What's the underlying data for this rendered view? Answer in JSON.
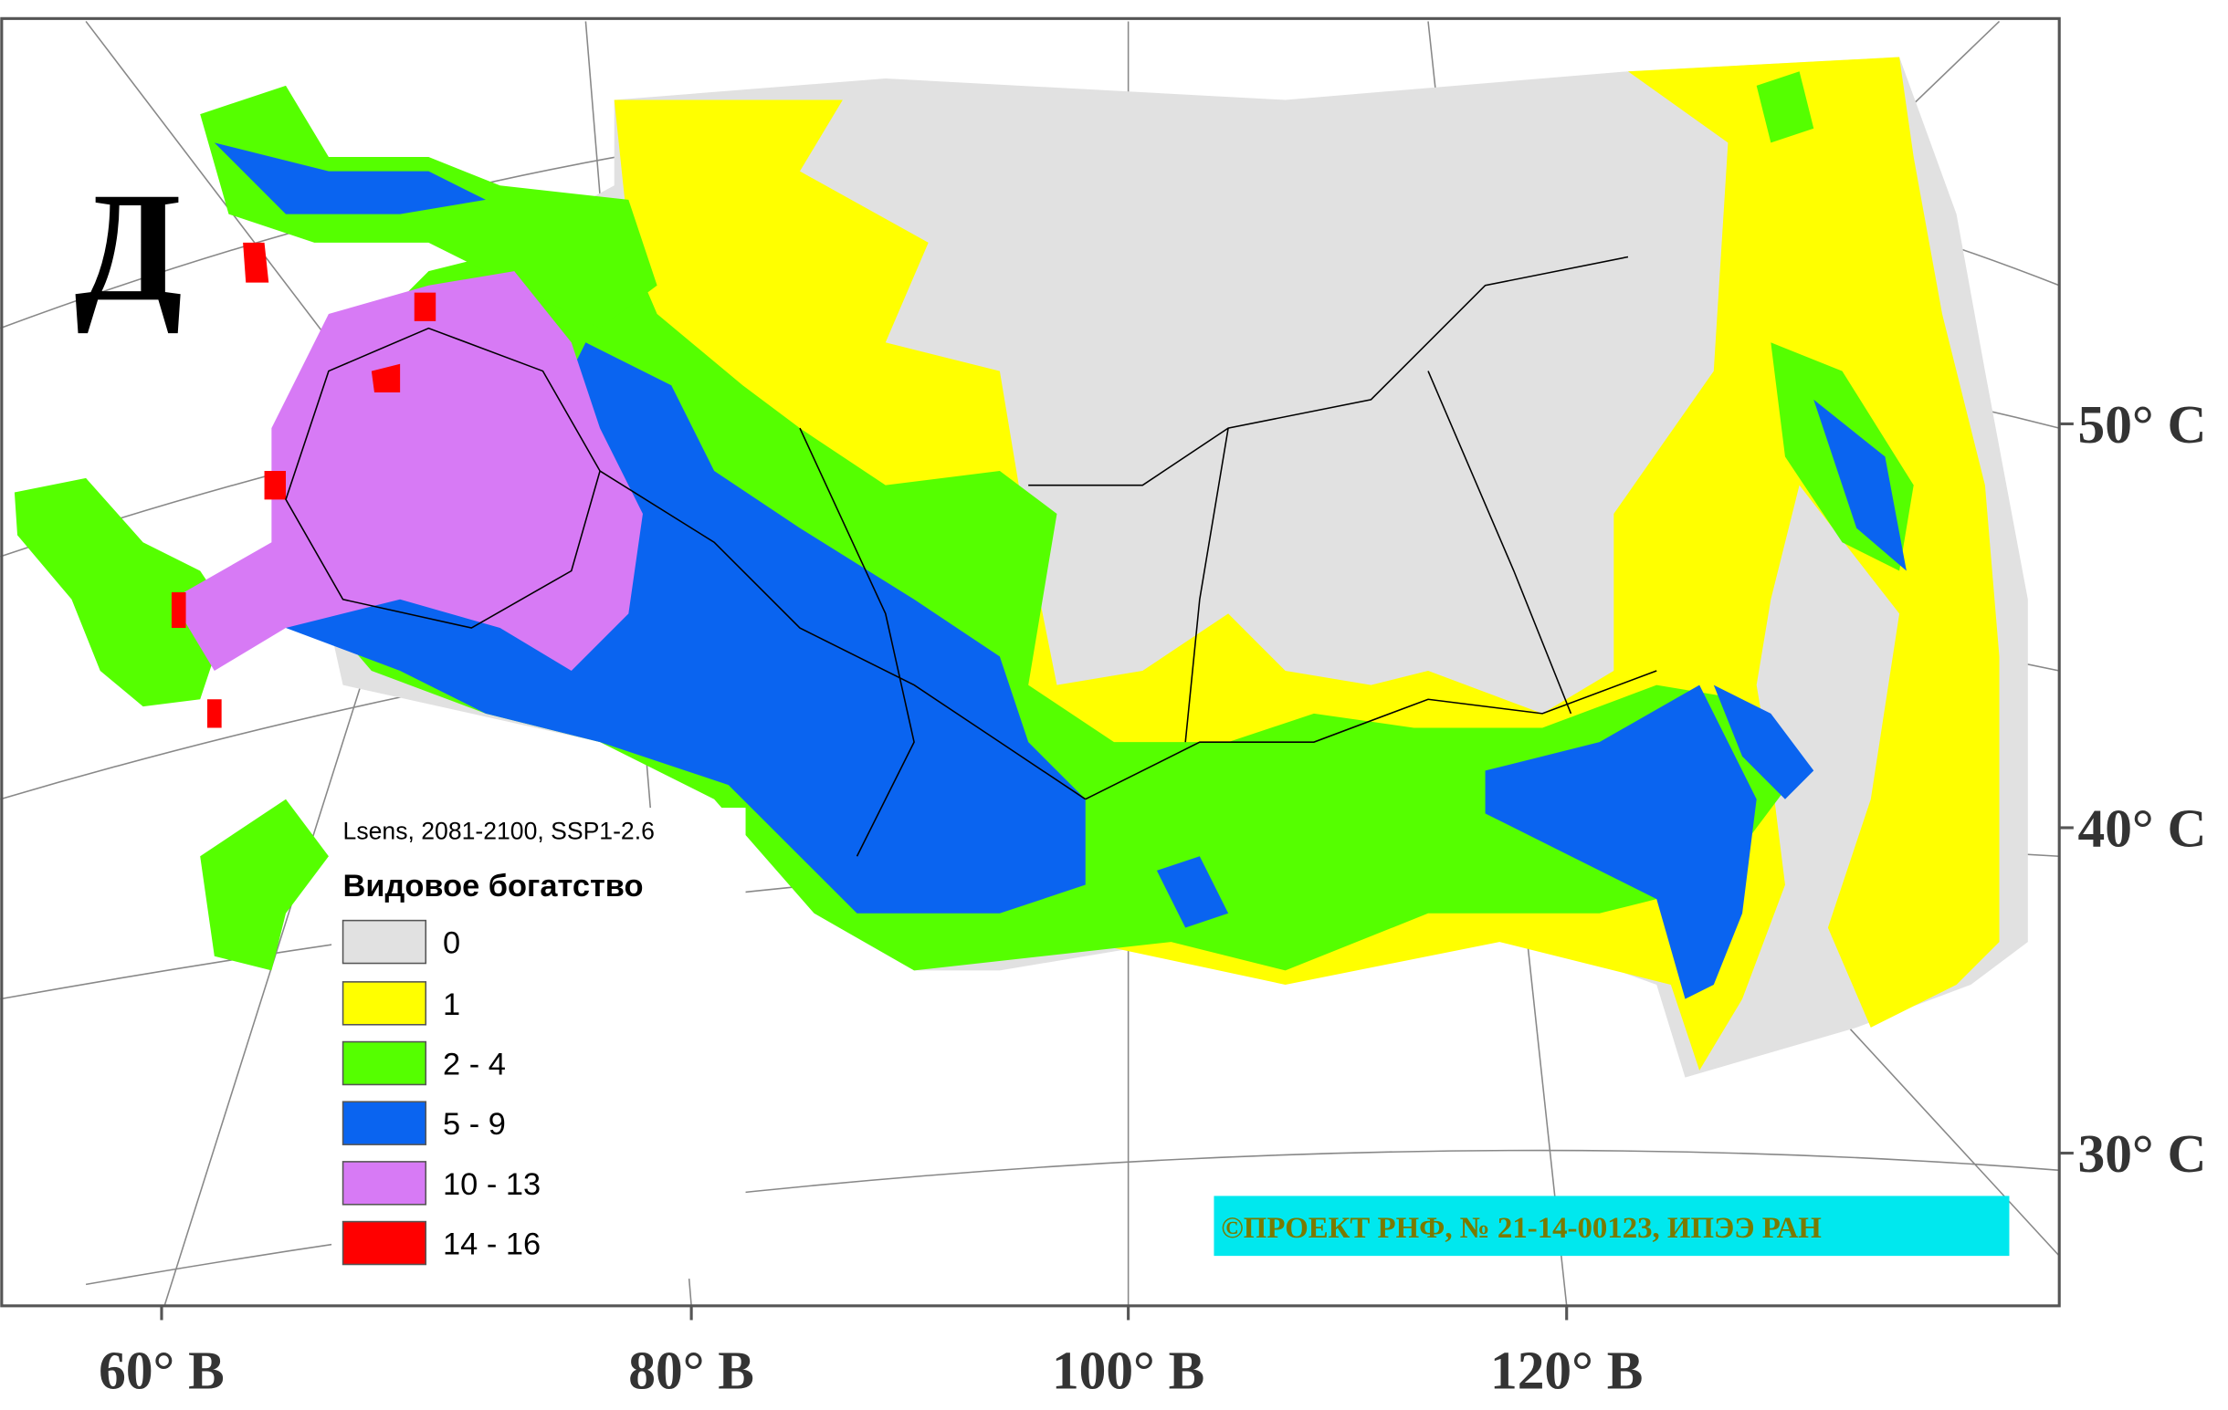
{
  "panel_letter": "Д",
  "legend": {
    "subtitle": "Lsens, 2081-2100, SSP1-2.6",
    "title": "Видовое богатство",
    "items": [
      {
        "label": "0",
        "color": "#e1e1e1"
      },
      {
        "label": "1",
        "color": "#ffff00"
      },
      {
        "label": "2 - 4",
        "color": "#55ff00"
      },
      {
        "label": "5 - 9",
        "color": "#0a64f0"
      },
      {
        "label": "10 - 13",
        "color": "#d77af5"
      },
      {
        "label": "14 - 16",
        "color": "#ff0000"
      }
    ]
  },
  "latitude_labels": [
    "50° С",
    "40° С",
    "30° С"
  ],
  "longitude_labels": [
    "60° В",
    "80° В",
    "100° В",
    "120° В"
  ],
  "credit": "©ПРОЕКТ РНФ, № 21-14-00123, ИПЭЭ РАН"
}
